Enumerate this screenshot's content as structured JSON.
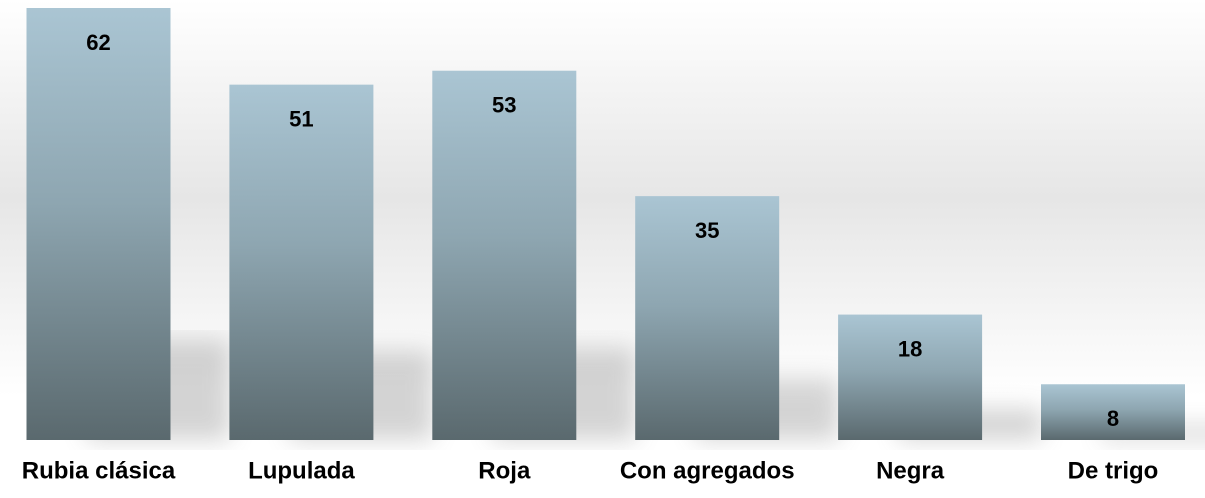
{
  "chart_data": {
    "type": "bar",
    "categories": [
      "Rubia clásica",
      "Lupulada",
      "Roja",
      "Con agregados",
      "Negra",
      "De trigo"
    ],
    "values": [
      62,
      51,
      53,
      35,
      18,
      8
    ]
  }
}
